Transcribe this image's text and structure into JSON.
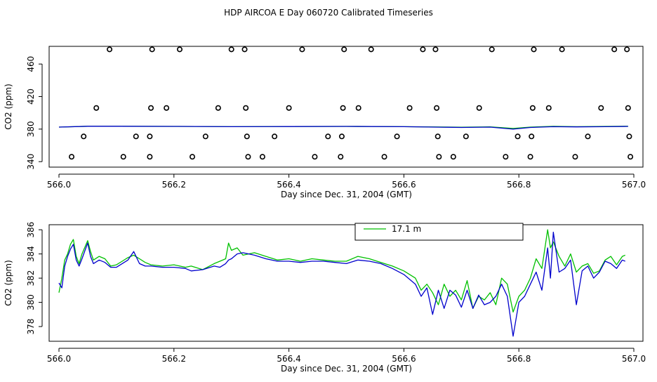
{
  "title": "HDP AIRCOA E  Day 060720  Calibrated Timeseries",
  "colors": {
    "series_a": "#00c000",
    "series_b": "#0000cc",
    "axis": "#000000",
    "marker": "#000000"
  },
  "chart_data": [
    {
      "type": "scatter+line",
      "xlabel": "Day since Dec. 31, 2004 (GMT)",
      "ylabel": "CO2 (ppm)",
      "xlim": [
        566.0,
        567.0
      ],
      "ylim": [
        335,
        480
      ],
      "xticks": [
        566.0,
        566.2,
        566.4,
        566.6,
        566.8,
        567.0
      ],
      "xtick_labels": [
        "566.0",
        "566.2",
        "566.4",
        "566.6",
        "566.8",
        "567.0"
      ],
      "yticks": [
        340,
        380,
        420,
        460
      ],
      "ytick_labels": [
        "340",
        "380",
        "420",
        "460"
      ],
      "grid": false,
      "markers": [
        {
          "x": 566.022,
          "y": 346
        },
        {
          "x": 566.043,
          "y": 371
        },
        {
          "x": 566.065,
          "y": 406
        },
        {
          "x": 566.088,
          "y": 478
        },
        {
          "x": 566.112,
          "y": 346
        },
        {
          "x": 566.134,
          "y": 371
        },
        {
          "x": 566.158,
          "y": 346
        },
        {
          "x": 566.158,
          "y": 371
        },
        {
          "x": 566.16,
          "y": 406
        },
        {
          "x": 566.162,
          "y": 478
        },
        {
          "x": 566.187,
          "y": 406
        },
        {
          "x": 566.21,
          "y": 478
        },
        {
          "x": 566.232,
          "y": 346
        },
        {
          "x": 566.255,
          "y": 371
        },
        {
          "x": 566.277,
          "y": 406
        },
        {
          "x": 566.3,
          "y": 478
        },
        {
          "x": 566.323,
          "y": 478
        },
        {
          "x": 566.325,
          "y": 406
        },
        {
          "x": 566.327,
          "y": 371
        },
        {
          "x": 566.329,
          "y": 346
        },
        {
          "x": 566.354,
          "y": 346
        },
        {
          "x": 566.375,
          "y": 371
        },
        {
          "x": 566.4,
          "y": 406
        },
        {
          "x": 566.423,
          "y": 478
        },
        {
          "x": 566.445,
          "y": 346
        },
        {
          "x": 566.468,
          "y": 371
        },
        {
          "x": 566.49,
          "y": 346
        },
        {
          "x": 566.492,
          "y": 371
        },
        {
          "x": 566.494,
          "y": 406
        },
        {
          "x": 566.496,
          "y": 478
        },
        {
          "x": 566.521,
          "y": 406
        },
        {
          "x": 566.543,
          "y": 478
        },
        {
          "x": 566.566,
          "y": 346
        },
        {
          "x": 566.588,
          "y": 371
        },
        {
          "x": 566.61,
          "y": 406
        },
        {
          "x": 566.633,
          "y": 478
        },
        {
          "x": 566.655,
          "y": 478
        },
        {
          "x": 566.657,
          "y": 406
        },
        {
          "x": 566.659,
          "y": 371
        },
        {
          "x": 566.661,
          "y": 346
        },
        {
          "x": 566.686,
          "y": 346
        },
        {
          "x": 566.708,
          "y": 371
        },
        {
          "x": 566.731,
          "y": 406
        },
        {
          "x": 566.753,
          "y": 478
        },
        {
          "x": 566.777,
          "y": 346
        },
        {
          "x": 566.798,
          "y": 371
        },
        {
          "x": 566.82,
          "y": 346
        },
        {
          "x": 566.822,
          "y": 371
        },
        {
          "x": 566.824,
          "y": 406
        },
        {
          "x": 566.826,
          "y": 478
        },
        {
          "x": 566.852,
          "y": 406
        },
        {
          "x": 566.875,
          "y": 478
        },
        {
          "x": 566.898,
          "y": 346
        },
        {
          "x": 566.92,
          "y": 371
        },
        {
          "x": 566.943,
          "y": 406
        },
        {
          "x": 566.966,
          "y": 478
        },
        {
          "x": 566.988,
          "y": 478
        },
        {
          "x": 566.99,
          "y": 406
        },
        {
          "x": 566.992,
          "y": 371
        },
        {
          "x": 566.994,
          "y": 346
        }
      ],
      "series": [
        {
          "x": [
            566.0,
            566.05,
            566.1,
            566.2,
            566.3,
            566.4,
            566.5,
            566.6,
            566.7,
            566.75,
            566.79,
            566.82,
            566.86,
            566.9,
            566.95,
            566.99
          ],
          "values": [
            382.5,
            383.5,
            383.5,
            383.3,
            383.0,
            383.2,
            383.3,
            383.0,
            382.4,
            382.8,
            380.8,
            382.5,
            383.4,
            383.0,
            383.3,
            383.5
          ]
        },
        {
          "x": [
            566.0,
            566.05,
            566.1,
            566.2,
            566.3,
            566.4,
            566.5,
            566.6,
            566.7,
            566.75,
            566.79,
            566.82,
            566.86,
            566.9,
            566.95,
            566.99
          ],
          "values": [
            382.5,
            383.5,
            383.5,
            383.3,
            383.0,
            383.2,
            383.3,
            383.0,
            382.0,
            382.5,
            380.0,
            382.0,
            383.0,
            382.7,
            383.0,
            383.3
          ]
        }
      ]
    },
    {
      "type": "line",
      "xlabel": "Day since Dec. 31, 2004 (GMT)",
      "ylabel": "CO2 (ppm)",
      "xlim": [
        566.0,
        567.0
      ],
      "ylim": [
        376.9,
        386.3
      ],
      "xticks": [
        566.0,
        566.2,
        566.4,
        566.6,
        566.8,
        567.0
      ],
      "xtick_labels": [
        "566.0",
        "566.2",
        "566.4",
        "566.6",
        "566.8",
        "567.0"
      ],
      "yticks": [
        378,
        380,
        382,
        384,
        386
      ],
      "ytick_labels": [
        "378",
        "380",
        "382",
        "384",
        "386"
      ],
      "grid": false,
      "legend_position": "top-center",
      "series": [
        {
          "name": "17.1 m",
          "x": [
            566.0,
            566.005,
            566.01,
            566.015,
            566.02,
            566.025,
            566.03,
            566.035,
            566.04,
            566.05,
            566.055,
            566.06,
            566.07,
            566.08,
            566.09,
            566.1,
            566.11,
            566.12,
            566.13,
            566.14,
            566.15,
            566.16,
            566.18,
            566.2,
            566.22,
            566.23,
            566.25,
            566.27,
            566.28,
            566.29,
            566.295,
            566.3,
            566.31,
            566.32,
            566.34,
            566.36,
            566.38,
            566.4,
            566.42,
            566.44,
            566.46,
            566.48,
            566.5,
            566.52,
            566.54,
            566.56,
            566.58,
            566.6,
            566.62,
            566.63,
            566.64,
            566.65,
            566.66,
            566.67,
            566.68,
            566.69,
            566.7,
            566.71,
            566.72,
            566.73,
            566.74,
            566.75,
            566.76,
            566.77,
            566.78,
            566.79,
            566.8,
            566.81,
            566.82,
            566.83,
            566.84,
            566.85,
            566.855,
            566.86,
            566.87,
            566.88,
            566.89,
            566.9,
            566.91,
            566.92,
            566.93,
            566.94,
            566.95,
            566.96,
            566.97,
            566.98,
            566.985
          ],
          "values": [
            380.8,
            382.0,
            383.5,
            384.0,
            384.8,
            385.2,
            383.8,
            383.2,
            384.0,
            385.1,
            384.2,
            383.5,
            383.8,
            383.6,
            383.0,
            383.1,
            383.4,
            383.7,
            383.9,
            383.6,
            383.3,
            383.1,
            383.0,
            383.1,
            382.9,
            383.0,
            382.7,
            383.2,
            383.4,
            383.6,
            384.9,
            384.3,
            384.5,
            383.9,
            384.1,
            383.8,
            383.5,
            383.6,
            383.4,
            383.6,
            383.5,
            383.4,
            383.4,
            383.8,
            383.6,
            383.3,
            383.0,
            382.6,
            382.0,
            381.0,
            381.5,
            380.8,
            379.8,
            381.5,
            380.5,
            381.0,
            380.2,
            381.8,
            379.5,
            380.5,
            380.2,
            380.8,
            379.8,
            382.0,
            381.5,
            379.2,
            380.5,
            381.0,
            382.0,
            383.6,
            382.8,
            386.0,
            384.5,
            385.0,
            383.8,
            383.0,
            384.0,
            382.5,
            383.0,
            383.2,
            382.4,
            382.6,
            383.5,
            383.8,
            383.1,
            383.8,
            383.9
          ]
        },
        {
          "name": "",
          "x": [
            566.0,
            566.005,
            566.01,
            566.015,
            566.02,
            566.025,
            566.03,
            566.035,
            566.04,
            566.05,
            566.055,
            566.06,
            566.07,
            566.08,
            566.09,
            566.1,
            566.11,
            566.12,
            566.13,
            566.14,
            566.15,
            566.16,
            566.18,
            566.2,
            566.22,
            566.23,
            566.25,
            566.27,
            566.28,
            566.29,
            566.295,
            566.3,
            566.31,
            566.32,
            566.34,
            566.36,
            566.38,
            566.4,
            566.42,
            566.44,
            566.46,
            566.48,
            566.5,
            566.52,
            566.54,
            566.56,
            566.58,
            566.6,
            566.62,
            566.63,
            566.64,
            566.65,
            566.66,
            566.67,
            566.68,
            566.69,
            566.7,
            566.71,
            566.72,
            566.73,
            566.74,
            566.75,
            566.76,
            566.77,
            566.78,
            566.79,
            566.8,
            566.81,
            566.82,
            566.83,
            566.84,
            566.85,
            566.855,
            566.86,
            566.87,
            566.88,
            566.89,
            566.9,
            566.91,
            566.92,
            566.93,
            566.94,
            566.95,
            566.96,
            566.97,
            566.98,
            566.985
          ],
          "values": [
            381.6,
            381.2,
            383.0,
            383.8,
            384.4,
            384.8,
            383.5,
            383.0,
            383.6,
            384.9,
            383.8,
            383.2,
            383.5,
            383.3,
            382.9,
            382.9,
            383.2,
            383.5,
            384.2,
            383.2,
            383.0,
            383.0,
            382.9,
            382.9,
            382.8,
            382.6,
            382.7,
            383.0,
            382.9,
            383.2,
            383.5,
            383.6,
            384.0,
            384.1,
            383.9,
            383.6,
            383.4,
            383.4,
            383.3,
            383.4,
            383.4,
            383.3,
            383.2,
            383.5,
            383.4,
            383.2,
            382.8,
            382.3,
            381.5,
            380.5,
            381.2,
            379.0,
            381.0,
            379.5,
            381.0,
            380.6,
            379.6,
            381.0,
            379.5,
            380.6,
            379.8,
            380.0,
            380.5,
            381.5,
            380.5,
            377.2,
            380.0,
            380.5,
            381.5,
            382.5,
            381.0,
            384.5,
            382.0,
            385.8,
            382.5,
            382.8,
            383.5,
            379.8,
            382.6,
            383.0,
            382.0,
            382.5,
            383.4,
            383.2,
            382.8,
            383.5,
            383.4
          ]
        }
      ]
    }
  ]
}
